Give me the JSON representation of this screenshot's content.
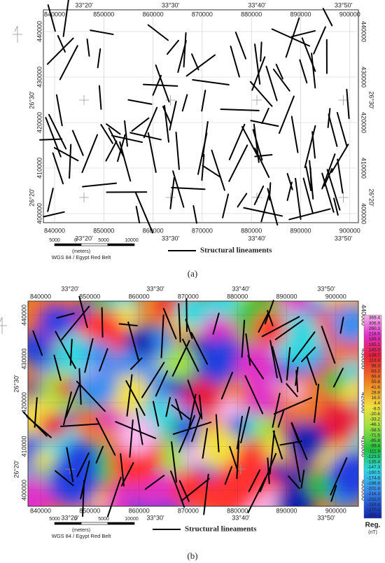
{
  "panels": [
    {
      "caption": "(a)",
      "eastings": [
        "840000",
        "850000",
        "860000",
        "870000",
        "880000",
        "890000",
        "900000"
      ],
      "longitudes": [
        "33°20'",
        "33°30'",
        "33°40'",
        "33°50'"
      ],
      "northings": [
        "440000",
        "430000",
        "420000",
        "410000",
        "400000"
      ],
      "latitudes": [
        "26°30'",
        "26°20'"
      ],
      "scale_labels": [
        "5000",
        "0",
        "5000",
        "10000"
      ],
      "scale_unit": "(meters)",
      "datum": "WGS 84 / Egypt Red Belt",
      "legend": "Structural lineaments"
    },
    {
      "caption": "(b)",
      "eastings": [
        "840000",
        "850000",
        "860000",
        "870000",
        "880000",
        "890000",
        "900000"
      ],
      "longitudes": [
        "33°20'",
        "33°30'",
        "33°40'",
        "33°50'"
      ],
      "northings": [
        "440000",
        "430000",
        "420000",
        "410000",
        "400000"
      ],
      "latitudes": [
        "26°30'",
        "26°20'"
      ],
      "scale_labels": [
        "5000",
        "0",
        "5000",
        "10000"
      ],
      "scale_unit": "(meters)",
      "datum": "WGS 84 / Egypt Red Belt",
      "legend": "Structural lineaments",
      "colorbar": {
        "title": "Reg.",
        "unit": "(nT)",
        "labels": [
          "369.4",
          "306.9",
          "260.1",
          "218.6",
          "189.3",
          "165.1",
          "145.0",
          "128.7",
          "113.4",
          "98.3",
          "83.2",
          "69.4",
          "55.6",
          "41.6",
          "28.8",
          "16.5",
          "4.4",
          "-8.5",
          "-20.6",
          "-33.2",
          "-46.1",
          "-58.5",
          "-71.5",
          "-85.8",
          "-99.4",
          "-111.9",
          "-123.5",
          "-135.4",
          "-147.3",
          "-160.5",
          "-174.8",
          "-188.8",
          "-201.8",
          "-216.3",
          "-232.0",
          "-249.4",
          "-270.1",
          "-305.7"
        ]
      }
    }
  ]
}
